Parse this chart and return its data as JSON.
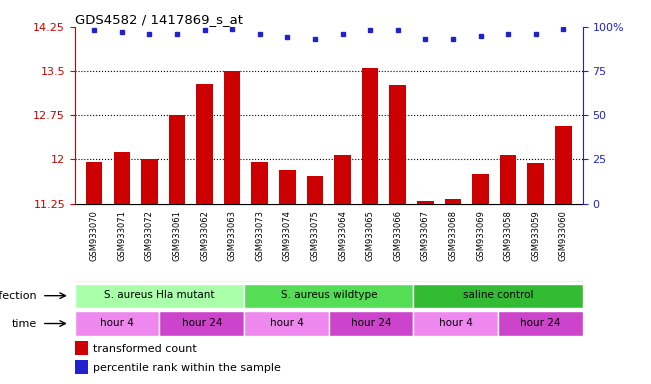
{
  "title": "GDS4582 / 1417869_s_at",
  "samples": [
    "GSM933070",
    "GSM933071",
    "GSM933072",
    "GSM933061",
    "GSM933062",
    "GSM933063",
    "GSM933073",
    "GSM933074",
    "GSM933075",
    "GSM933064",
    "GSM933065",
    "GSM933066",
    "GSM933067",
    "GSM933068",
    "GSM933069",
    "GSM933058",
    "GSM933059",
    "GSM933060"
  ],
  "bar_values": [
    11.95,
    12.12,
    12.0,
    12.75,
    13.28,
    13.5,
    11.95,
    11.82,
    11.72,
    12.08,
    13.55,
    13.27,
    11.3,
    11.32,
    11.75,
    12.08,
    11.93,
    12.57
  ],
  "percentile_values": [
    98,
    97,
    96,
    96,
    98,
    99,
    96,
    94,
    93,
    96,
    98,
    98,
    93,
    93,
    95,
    96,
    96,
    99
  ],
  "ylim_left": [
    11.25,
    14.25
  ],
  "ylim_right": [
    0,
    100
  ],
  "yticks_left": [
    11.25,
    12.0,
    12.75,
    13.5,
    14.25
  ],
  "ytick_labels_left": [
    "11.25",
    "12",
    "12.75",
    "13.5",
    "14.25"
  ],
  "yticks_right": [
    0,
    25,
    50,
    75,
    100
  ],
  "ytick_labels_right": [
    "0",
    "25",
    "50",
    "75",
    "100%"
  ],
  "bar_color": "#cc0000",
  "dot_color": "#2222cc",
  "grid_ticks": [
    12.0,
    12.75,
    13.5
  ],
  "infection_groups": [
    {
      "label": "S. aureus Hla mutant",
      "start": 0,
      "end": 6,
      "color": "#aaffaa"
    },
    {
      "label": "S. aureus wildtype",
      "start": 6,
      "end": 12,
      "color": "#55dd55"
    },
    {
      "label": "saline control",
      "start": 12,
      "end": 18,
      "color": "#33bb33"
    }
  ],
  "time_groups": [
    {
      "label": "hour 4",
      "start": 0,
      "end": 3,
      "color": "#ee88ee"
    },
    {
      "label": "hour 24",
      "start": 3,
      "end": 6,
      "color": "#cc44cc"
    },
    {
      "label": "hour 4",
      "start": 6,
      "end": 9,
      "color": "#ee88ee"
    },
    {
      "label": "hour 24",
      "start": 9,
      "end": 12,
      "color": "#cc44cc"
    },
    {
      "label": "hour 4",
      "start": 12,
      "end": 15,
      "color": "#ee88ee"
    },
    {
      "label": "hour 24",
      "start": 15,
      "end": 18,
      "color": "#cc44cc"
    }
  ],
  "infection_label": "infection",
  "time_label": "time",
  "legend_bar_label": "transformed count",
  "legend_dot_label": "percentile rank within the sample",
  "xtick_bg": "#cccccc",
  "plot_bg": "#ffffff"
}
